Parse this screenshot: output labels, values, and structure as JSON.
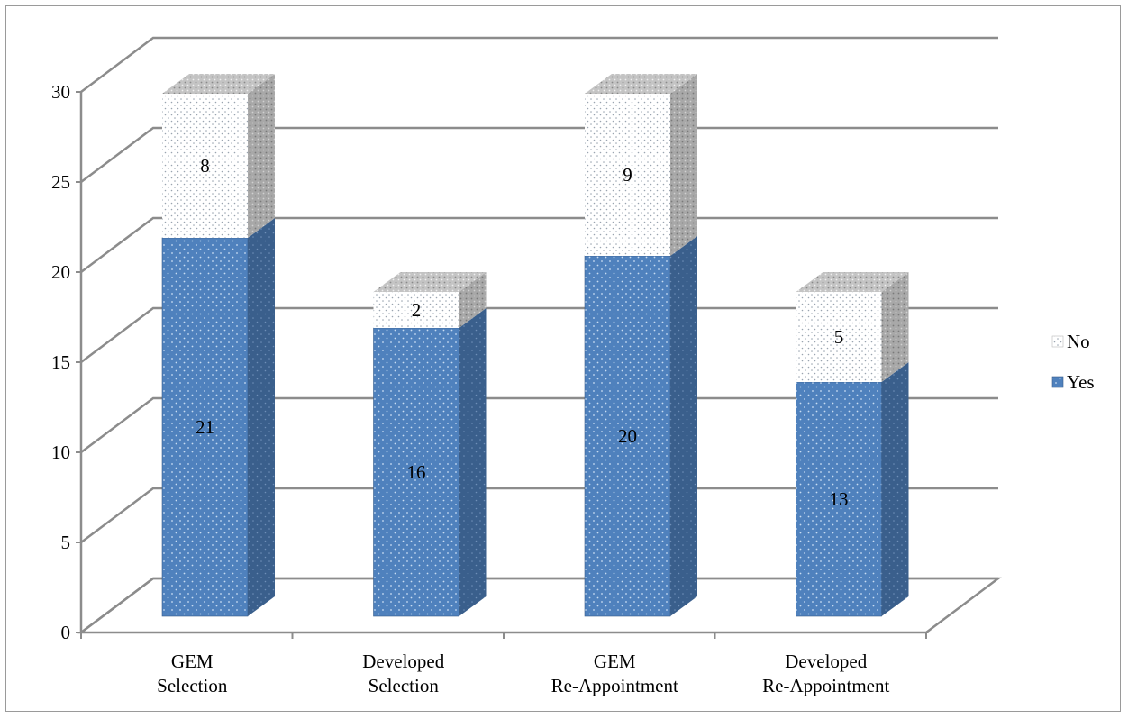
{
  "chart_data": {
    "type": "bar",
    "stacked": true,
    "three_d": true,
    "categories": [
      [
        "GEM",
        "Selection"
      ],
      [
        "Developed",
        "Selection"
      ],
      [
        "GEM",
        "Re-Appointment"
      ],
      [
        "Developed",
        "Re-Appointment"
      ]
    ],
    "series": [
      {
        "name": "Yes",
        "values": [
          21,
          16,
          20,
          13
        ],
        "color": "#4f81bd",
        "pattern": "dotted"
      },
      {
        "name": "No",
        "values": [
          8,
          2,
          9,
          5
        ],
        "color": "#ffffff",
        "pattern": "dotted"
      }
    ],
    "ylim": [
      0,
      30
    ],
    "yticks": [
      0,
      5,
      10,
      15,
      20,
      25,
      30
    ],
    "grid": true,
    "legend": {
      "position": "right",
      "order": [
        "No",
        "Yes"
      ]
    },
    "title": "",
    "xlabel": "",
    "ylabel": ""
  }
}
